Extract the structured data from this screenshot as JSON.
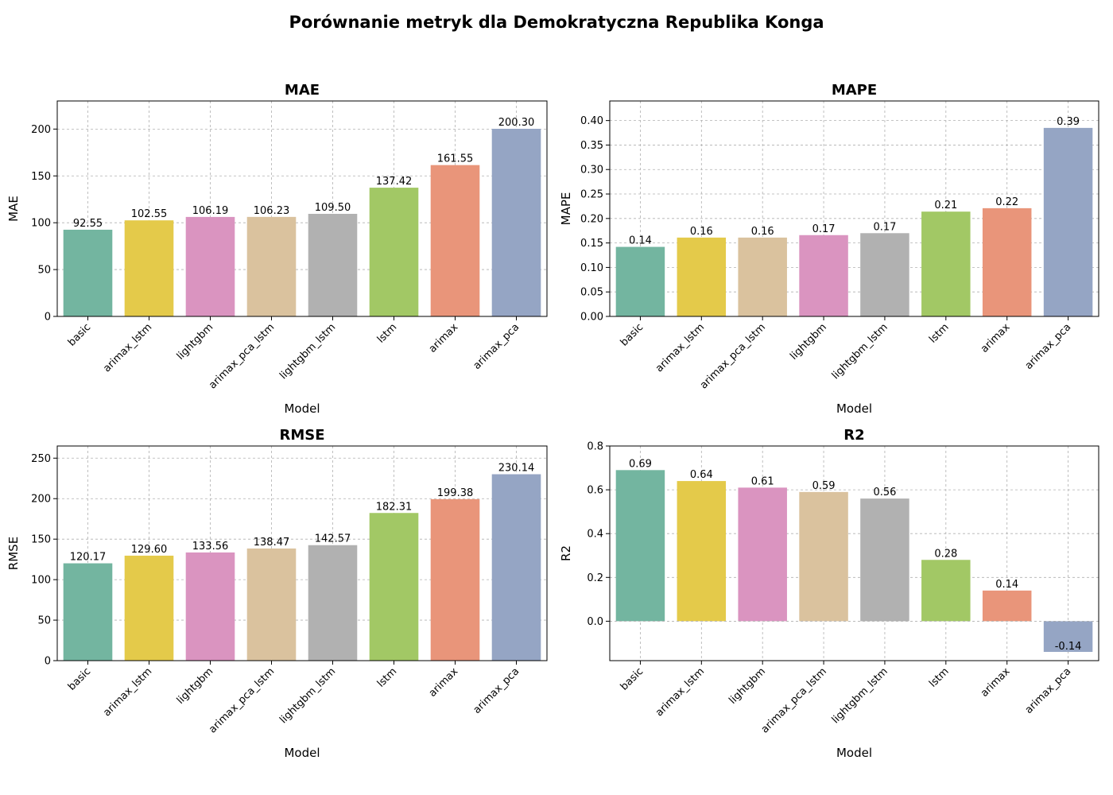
{
  "figure": {
    "title": "Porównanie metryk dla Demokratyczna Republika Konga"
  },
  "chart_data": [
    {
      "type": "bar",
      "title": "MAE",
      "xlabel": "Model",
      "ylabel": "MAE",
      "categories": [
        "basic",
        "arimax_lstm",
        "lightgbm",
        "arimax_pca_lstm",
        "lightgbm_lstm",
        "lstm",
        "arimax",
        "arimax_pca"
      ],
      "values": [
        92.55,
        102.55,
        106.19,
        106.23,
        109.5,
        137.42,
        161.55,
        200.3
      ],
      "data_labels": [
        "92.55",
        "102.55",
        "106.19",
        "106.23",
        "109.50",
        "137.42",
        "161.55",
        "200.30"
      ],
      "colors": [
        "#73b5a0",
        "#e4ca4a",
        "#da94c0",
        "#dac29e",
        "#b1b1b1",
        "#a2c865",
        "#e9957a",
        "#95a5c4"
      ],
      "ylim": [
        0,
        230
      ],
      "yticks": [
        0,
        50,
        100,
        150,
        200
      ],
      "ytick_labels": [
        "0",
        "50",
        "100",
        "150",
        "200"
      ],
      "grid": true
    },
    {
      "type": "bar",
      "title": "MAPE",
      "xlabel": "Model",
      "ylabel": "MAPE",
      "categories": [
        "basic",
        "arimax_lstm",
        "arimax_pca_lstm",
        "lightgbm",
        "lightgbm_lstm",
        "lstm",
        "arimax",
        "arimax_pca"
      ],
      "values": [
        0.142,
        0.161,
        0.161,
        0.166,
        0.17,
        0.214,
        0.221,
        0.385
      ],
      "data_labels": [
        "0.14",
        "0.16",
        "0.16",
        "0.17",
        "0.17",
        "0.21",
        "0.22",
        "0.39"
      ],
      "colors": [
        "#73b5a0",
        "#e4ca4a",
        "#dac29e",
        "#da94c0",
        "#b1b1b1",
        "#a2c865",
        "#e9957a",
        "#95a5c4"
      ],
      "ylim": [
        0,
        0.44
      ],
      "yticks": [
        0,
        0.05,
        0.1,
        0.15,
        0.2,
        0.25,
        0.3,
        0.35,
        0.4
      ],
      "ytick_labels": [
        "0.00",
        "0.05",
        "0.10",
        "0.15",
        "0.20",
        "0.25",
        "0.30",
        "0.35",
        "0.40"
      ],
      "grid": true
    },
    {
      "type": "bar",
      "title": "RMSE",
      "xlabel": "Model",
      "ylabel": "RMSE",
      "categories": [
        "basic",
        "arimax_lstm",
        "lightgbm",
        "arimax_pca_lstm",
        "lightgbm_lstm",
        "lstm",
        "arimax",
        "arimax_pca"
      ],
      "values": [
        120.17,
        129.6,
        133.56,
        138.47,
        142.57,
        182.31,
        199.38,
        230.14
      ],
      "data_labels": [
        "120.17",
        "129.60",
        "133.56",
        "138.47",
        "142.57",
        "182.31",
        "199.38",
        "230.14"
      ],
      "colors": [
        "#73b5a0",
        "#e4ca4a",
        "#da94c0",
        "#dac29e",
        "#b1b1b1",
        "#a2c865",
        "#e9957a",
        "#95a5c4"
      ],
      "ylim": [
        0,
        265
      ],
      "yticks": [
        0,
        50,
        100,
        150,
        200,
        250
      ],
      "ytick_labels": [
        "0",
        "50",
        "100",
        "150",
        "200",
        "250"
      ],
      "grid": true
    },
    {
      "type": "bar",
      "title": "R2",
      "xlabel": "Model",
      "ylabel": "R2",
      "categories": [
        "basic",
        "arimax_lstm",
        "lightgbm",
        "arimax_pca_lstm",
        "lightgbm_lstm",
        "lstm",
        "arimax",
        "arimax_pca"
      ],
      "values": [
        0.69,
        0.64,
        0.61,
        0.59,
        0.56,
        0.28,
        0.14,
        -0.14
      ],
      "data_labels": [
        "0.69",
        "0.64",
        "0.61",
        "0.59",
        "0.56",
        "0.28",
        "0.14",
        "-0.14"
      ],
      "colors": [
        "#73b5a0",
        "#e4ca4a",
        "#da94c0",
        "#dac29e",
        "#b1b1b1",
        "#a2c865",
        "#e9957a",
        "#95a5c4"
      ],
      "ylim": [
        -0.18,
        0.8
      ],
      "yticks": [
        0,
        0.2,
        0.4,
        0.6,
        0.8
      ],
      "ytick_labels": [
        "0.0",
        "0.2",
        "0.4",
        "0.6",
        "0.8"
      ],
      "grid": true
    }
  ]
}
